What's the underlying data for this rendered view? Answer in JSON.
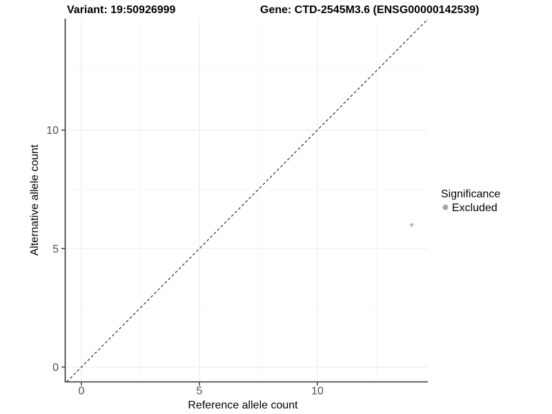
{
  "chart_data": {
    "type": "scatter",
    "title_left": "Variant: 19:50926999",
    "title_right": "Gene: CTD-2545M3.6 (ENSG00000142539)",
    "xlabel": "Reference allele count",
    "ylabel": "Alternative allele count",
    "xlim": [
      -0.7,
      14.8
    ],
    "ylim": [
      -0.65,
      14.7
    ],
    "x_ticks": [
      0,
      5,
      10
    ],
    "y_ticks": [
      0,
      5,
      10
    ],
    "x_tick_labels": [
      "0",
      "5",
      "10"
    ],
    "y_tick_labels": [
      "0",
      "5",
      "10"
    ],
    "grid": {
      "major": true,
      "minor": true,
      "major_color": "#ebebeb",
      "minor_color": "#f4f4f4"
    },
    "axis_line_color": "#333333",
    "tick_label_color": "#4d4d4d",
    "identity_line": {
      "description": "y = x reference line",
      "slope": 1,
      "intercept": 0,
      "style": "dashed",
      "color": "#1a1a1a"
    },
    "series": [
      {
        "name": "Excluded",
        "color": "#bdbdbd",
        "points": [
          {
            "x": 14,
            "y": 6
          }
        ]
      }
    ],
    "legend": {
      "title": "Significance",
      "position": "right",
      "items": [
        {
          "label": "Excluded",
          "color": "#a6a6a6"
        }
      ]
    }
  }
}
